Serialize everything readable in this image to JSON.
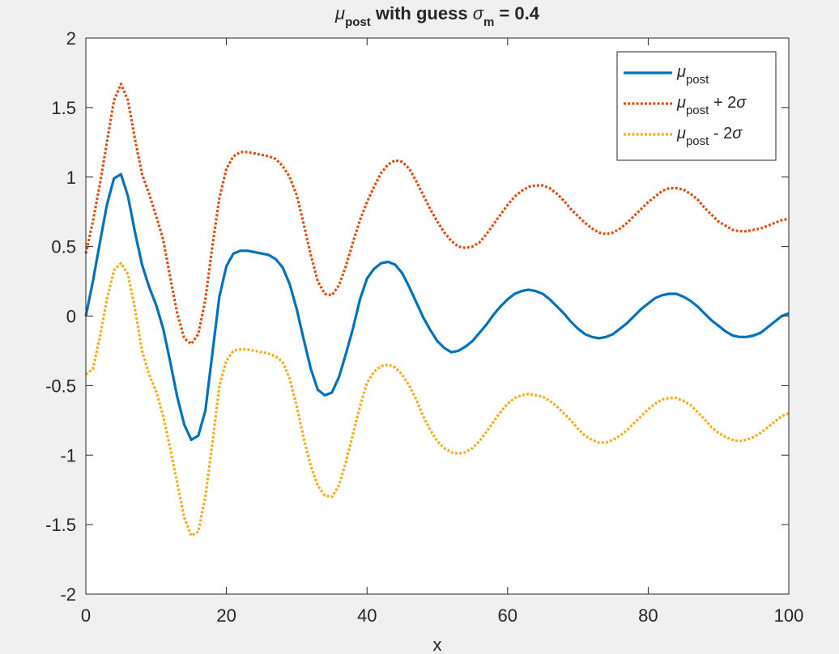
{
  "chart_data": {
    "type": "line",
    "title": {
      "mu": "μ",
      "mu_sub": "post",
      "middle": " with guess ",
      "sigma": "σ",
      "sigma_sub": "m",
      "end": " = 0.4"
    },
    "xlabel": "x",
    "ylabel": "",
    "xlim": [
      0,
      100
    ],
    "ylim": [
      -2,
      2
    ],
    "xticks": [
      0,
      20,
      40,
      60,
      80,
      100
    ],
    "xtick_labels": [
      "0",
      "20",
      "40",
      "60",
      "80",
      "100"
    ],
    "yticks": [
      -2,
      -1.5,
      -1,
      -0.5,
      0,
      0.5,
      1,
      1.5,
      2
    ],
    "ytick_labels": [
      "-2",
      "-1.5",
      "-1",
      "-0.5",
      "0",
      "0.5",
      "1",
      "1.5",
      "2"
    ],
    "grid": false,
    "legend_position": "top-right",
    "x": [
      0,
      1,
      2,
      3,
      4,
      5,
      6,
      7,
      8,
      9,
      10,
      11,
      12,
      13,
      14,
      15,
      16,
      17,
      18,
      19,
      20,
      21,
      22,
      23,
      24,
      25,
      26,
      27,
      28,
      29,
      30,
      31,
      32,
      33,
      34,
      35,
      36,
      37,
      38,
      39,
      40,
      41,
      42,
      43,
      44,
      45,
      46,
      47,
      48,
      49,
      50,
      51,
      52,
      53,
      54,
      55,
      56,
      57,
      58,
      59,
      60,
      61,
      62,
      63,
      64,
      65,
      66,
      67,
      68,
      69,
      70,
      71,
      72,
      73,
      74,
      75,
      76,
      77,
      78,
      79,
      80,
      81,
      82,
      83,
      84,
      85,
      86,
      87,
      88,
      89,
      90,
      91,
      92,
      93,
      94,
      95,
      96,
      97,
      98,
      99,
      100
    ],
    "series": [
      {
        "name": {
          "mu": "μ",
          "sub": "post",
          "suffix": ""
        },
        "color": "#0072bd",
        "style": "solid",
        "values": [
          0,
          0.25,
          0.53,
          0.8,
          0.99,
          1.02,
          0.86,
          0.6,
          0.37,
          0.21,
          0.08,
          -0.09,
          -0.33,
          -0.58,
          -0.78,
          -0.89,
          -0.86,
          -0.68,
          -0.27,
          0.14,
          0.36,
          0.45,
          0.47,
          0.47,
          0.46,
          0.45,
          0.44,
          0.41,
          0.35,
          0.23,
          0.05,
          -0.17,
          -0.38,
          -0.53,
          -0.57,
          -0.55,
          -0.44,
          -0.27,
          -0.09,
          0.12,
          0.27,
          0.34,
          0.38,
          0.39,
          0.37,
          0.31,
          0.21,
          0.1,
          -0.01,
          -0.1,
          -0.18,
          -0.23,
          -0.26,
          -0.25,
          -0.22,
          -0.18,
          -0.12,
          -0.06,
          0.01,
          0.07,
          0.12,
          0.16,
          0.18,
          0.19,
          0.18,
          0.16,
          0.12,
          0.07,
          0.02,
          -0.04,
          -0.09,
          -0.13,
          -0.15,
          -0.16,
          -0.15,
          -0.13,
          -0.09,
          -0.05,
          0,
          0.05,
          0.09,
          0.13,
          0.15,
          0.16,
          0.16,
          0.14,
          0.11,
          0.07,
          0.02,
          -0.03,
          -0.07,
          -0.11,
          -0.14,
          -0.15,
          -0.15,
          -0.14,
          -0.12,
          -0.08,
          -0.04,
          0,
          0.02
        ]
      },
      {
        "name": {
          "mu": "μ",
          "sub": "post",
          "suffix": " + 2σ"
        },
        "color": "#d95319",
        "style": "dotted",
        "values": [
          0.45,
          0.68,
          0.95,
          1.25,
          1.55,
          1.67,
          1.55,
          1.27,
          1.02,
          0.88,
          0.72,
          0.55,
          0.28,
          0.02,
          -0.16,
          -0.2,
          -0.13,
          0.12,
          0.5,
          0.85,
          1.06,
          1.15,
          1.18,
          1.18,
          1.17,
          1.16,
          1.15,
          1.13,
          1.08,
          1,
          0.87,
          0.66,
          0.44,
          0.25,
          0.16,
          0.15,
          0.22,
          0.36,
          0.53,
          0.69,
          0.82,
          0.93,
          1.03,
          1.09,
          1.12,
          1.11,
          1.06,
          0.97,
          0.87,
          0.77,
          0.68,
          0.6,
          0.54,
          0.5,
          0.49,
          0.5,
          0.53,
          0.59,
          0.66,
          0.73,
          0.8,
          0.86,
          0.9,
          0.93,
          0.94,
          0.94,
          0.92,
          0.88,
          0.83,
          0.77,
          0.72,
          0.67,
          0.63,
          0.6,
          0.59,
          0.6,
          0.63,
          0.67,
          0.72,
          0.77,
          0.82,
          0.86,
          0.9,
          0.92,
          0.92,
          0.91,
          0.88,
          0.84,
          0.78,
          0.73,
          0.68,
          0.65,
          0.62,
          0.61,
          0.61,
          0.62,
          0.63,
          0.65,
          0.67,
          0.69,
          0.7
        ]
      },
      {
        "name": {
          "mu": "μ",
          "sub": "post",
          "suffix": " - 2σ"
        },
        "color": "#edb120",
        "style": "dotted",
        "values": [
          -0.42,
          -0.38,
          -0.15,
          0.12,
          0.33,
          0.38,
          0.3,
          0.05,
          -0.25,
          -0.42,
          -0.54,
          -0.72,
          -0.95,
          -1.2,
          -1.45,
          -1.58,
          -1.55,
          -1.3,
          -0.92,
          -0.5,
          -0.32,
          -0.25,
          -0.24,
          -0.24,
          -0.25,
          -0.26,
          -0.27,
          -0.29,
          -0.33,
          -0.45,
          -0.65,
          -0.88,
          -1.08,
          -1.22,
          -1.29,
          -1.3,
          -1.22,
          -1.05,
          -0.85,
          -0.65,
          -0.48,
          -0.4,
          -0.36,
          -0.35,
          -0.37,
          -0.42,
          -0.5,
          -0.6,
          -0.72,
          -0.82,
          -0.9,
          -0.95,
          -0.98,
          -0.99,
          -0.98,
          -0.95,
          -0.9,
          -0.83,
          -0.76,
          -0.69,
          -0.63,
          -0.59,
          -0.57,
          -0.56,
          -0.57,
          -0.58,
          -0.61,
          -0.65,
          -0.7,
          -0.75,
          -0.81,
          -0.86,
          -0.89,
          -0.91,
          -0.91,
          -0.89,
          -0.86,
          -0.82,
          -0.77,
          -0.72,
          -0.67,
          -0.63,
          -0.6,
          -0.59,
          -0.59,
          -0.61,
          -0.64,
          -0.69,
          -0.74,
          -0.8,
          -0.84,
          -0.87,
          -0.89,
          -0.9,
          -0.89,
          -0.87,
          -0.84,
          -0.8,
          -0.76,
          -0.72,
          -0.7
        ]
      }
    ]
  }
}
